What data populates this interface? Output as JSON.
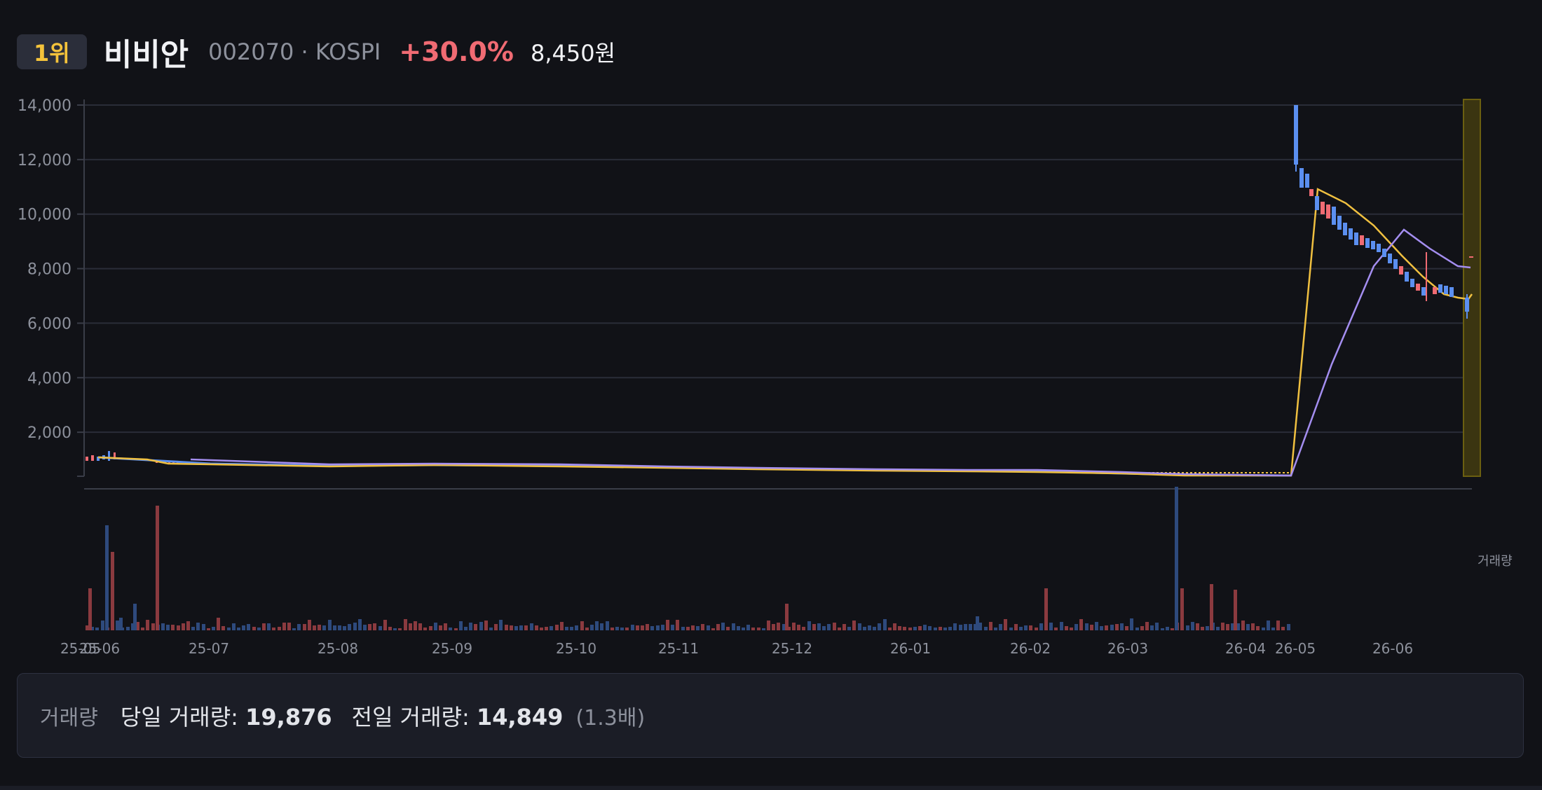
{
  "header": {
    "rank": "1위",
    "name": "비비안",
    "code_market": "002070 · KOSPI",
    "change_pct": "+30.0%",
    "price": "8,450원"
  },
  "volume_panel": {
    "label": "거래량",
    "today_label": "당일 거래량:",
    "today_value": "19,876",
    "prev_label": "전일 거래량:",
    "prev_value": "14,849",
    "ratio": "(1.3배)"
  },
  "colors": {
    "background": "#111217",
    "up": "#f06b73",
    "down": "#5b8ff0",
    "ma_short": "#f0c040",
    "ma_long": "#a48ef0",
    "highlight": "#6b5f10",
    "vol_up": "#8b3a3f",
    "vol_down": "#2e4a7d"
  },
  "chart_data": {
    "type": "candlestick",
    "y_axis": {
      "ticks": [
        2000,
        4000,
        6000,
        8000,
        10000,
        12000,
        14000
      ],
      "range": [
        0,
        14000
      ],
      "grid": true
    },
    "x_axis": {
      "labels": [
        "25-05",
        "25-06",
        "25-07",
        "25-08",
        "25-09",
        "25-10",
        "25-11",
        "25-12",
        "26-01",
        "26-02",
        "26-03",
        "26-04",
        "26-05",
        "26-06"
      ],
      "range": [
        "2025-05",
        "2026-06"
      ]
    },
    "volume_label": "거래량",
    "price_series": [
      [
        "2025-05",
        950
      ],
      [
        "2025-06",
        940
      ],
      [
        "2025-07",
        780
      ],
      [
        "2025-08",
        730
      ],
      [
        "2025-09",
        730
      ],
      [
        "2025-10",
        720
      ],
      [
        "2025-11",
        700
      ],
      [
        "2025-12",
        640
      ],
      [
        "2026-01",
        610
      ],
      [
        "2026-02",
        580
      ],
      [
        "2026-03",
        560
      ],
      [
        "2026-04",
        420
      ],
      [
        "2026-05",
        13200
      ],
      [
        "2026-05",
        11000
      ],
      [
        "2026-06",
        9000
      ],
      [
        "2026-06",
        6900
      ],
      [
        "2026-06",
        8450
      ]
    ],
    "ma_short": [
      [
        "2025-05",
        950
      ],
      [
        "2025-06",
        820
      ],
      [
        "2025-08",
        730
      ],
      [
        "2025-12",
        640
      ],
      [
        "2026-03",
        520
      ],
      [
        "2026-04",
        380
      ],
      [
        "2026-05",
        10800
      ],
      [
        "2026-06",
        7800
      ],
      [
        "2026-06",
        7000
      ],
      [
        "2026-06",
        7100
      ]
    ],
    "ma_long": [
      [
        "2025-07",
        880
      ],
      [
        "2025-09",
        750
      ],
      [
        "2025-12",
        660
      ],
      [
        "2026-03",
        530
      ],
      [
        "2026-04",
        400
      ],
      [
        "2026-05",
        5000
      ],
      [
        "2026-06",
        9400
      ],
      [
        "2026-06",
        7600
      ]
    ],
    "volume_peaks": [
      [
        "2025-05",
        "down"
      ],
      [
        "2025-06",
        "up"
      ],
      [
        "2026-02",
        "up"
      ],
      [
        "2026-03",
        "down"
      ],
      [
        "2026-03",
        "up"
      ]
    ]
  }
}
